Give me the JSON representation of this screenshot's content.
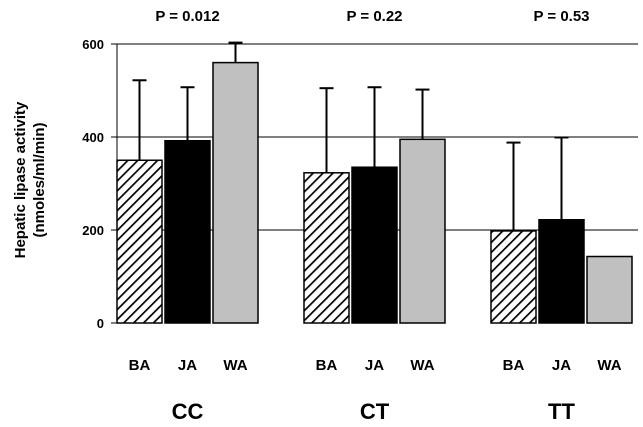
{
  "chart_data": {
    "type": "bar",
    "ylabel_lines": [
      "Hepatic lipase activity",
      "(nmoles/ml/min)"
    ],
    "ylim": [
      0,
      600
    ],
    "yticks": [
      0,
      200,
      400,
      600
    ],
    "grid": true,
    "groups": [
      {
        "name": "CC",
        "p_value": "P = 0.012",
        "bars": [
          {
            "label": "BA",
            "value": 350,
            "error": 172
          },
          {
            "label": "JA",
            "value": 392,
            "error": 115
          },
          {
            "label": "WA",
            "value": 560,
            "error": 43
          }
        ]
      },
      {
        "name": "CT",
        "p_value": "P = 0.22",
        "bars": [
          {
            "label": "BA",
            "value": 323,
            "error": 182
          },
          {
            "label": "JA",
            "value": 335,
            "error": 172
          },
          {
            "label": "WA",
            "value": 395,
            "error": 107
          }
        ]
      },
      {
        "name": "TT",
        "p_value": "P = 0.53",
        "bars": [
          {
            "label": "BA",
            "value": 198,
            "error": 190
          },
          {
            "label": "JA",
            "value": 222,
            "error": 177
          },
          {
            "label": "WA",
            "value": 143,
            "error": 0
          }
        ]
      }
    ],
    "bar_styles": {
      "BA": {
        "fill": "hatched",
        "color": "#000000"
      },
      "JA": {
        "fill": "solid",
        "color": "#000000"
      },
      "WA": {
        "fill": "solid",
        "color": "#c0c0c0"
      }
    }
  }
}
